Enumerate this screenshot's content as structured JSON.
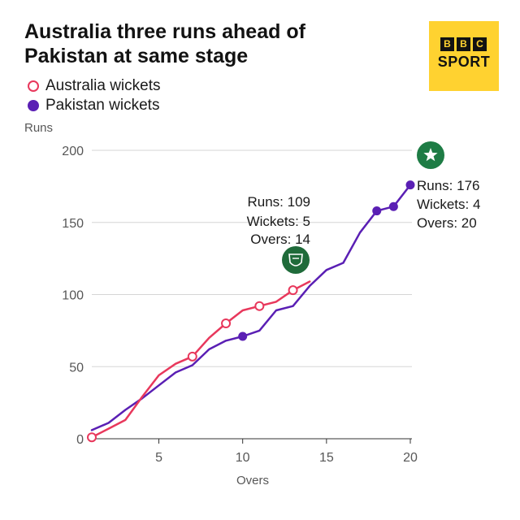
{
  "title": "Australia three runs ahead of Pakistan at same stage",
  "brand": {
    "top": [
      "B",
      "B",
      "C"
    ],
    "bottom": "SPORT",
    "color": "#ffd230"
  },
  "chart_data": {
    "type": "line",
    "title": "Australia three runs ahead of Pakistan at same stage",
    "xlabel": "Overs",
    "ylabel": "Runs",
    "xlim": [
      1,
      20
    ],
    "ylim": [
      0,
      200
    ],
    "xticks": [
      5,
      10,
      15,
      20
    ],
    "yticks": [
      0,
      50,
      100,
      150,
      200
    ],
    "grid": "horizontal",
    "legend_position": "top-left",
    "series": [
      {
        "name": "Australia wickets",
        "color": "#e8385c",
        "marker": "hollow-circle",
        "x": [
          1,
          2,
          3,
          4,
          5,
          6,
          7,
          8,
          9,
          10,
          11,
          12,
          13,
          14
        ],
        "y": [
          1,
          7,
          13,
          29,
          44,
          52,
          57,
          70,
          80,
          89,
          92,
          95,
          103,
          109
        ],
        "wickets_at_overs": [
          1,
          7,
          9,
          11,
          13
        ]
      },
      {
        "name": "Pakistan wickets",
        "color": "#5a1fb4",
        "marker": "filled-circle",
        "x": [
          1,
          2,
          3,
          4,
          5,
          6,
          7,
          8,
          9,
          10,
          11,
          12,
          13,
          14,
          15,
          16,
          17,
          18,
          19,
          20
        ],
        "y": [
          6,
          11,
          20,
          28,
          37,
          46,
          51,
          62,
          68,
          71,
          75,
          89,
          92,
          106,
          117,
          122,
          143,
          158,
          161,
          176
        ],
        "wickets_at_overs": [
          10,
          18,
          19,
          20
        ]
      }
    ],
    "annotations": [
      {
        "team": "Australia",
        "lines": [
          "Runs: 109",
          "Wickets: 5",
          "Overs: 14"
        ],
        "badge_color": "#1f6b3a"
      },
      {
        "team": "Pakistan",
        "lines": [
          "Runs: 176",
          "Wickets: 4",
          "Overs: 20"
        ],
        "badge_color": "#1e7c45"
      }
    ]
  }
}
